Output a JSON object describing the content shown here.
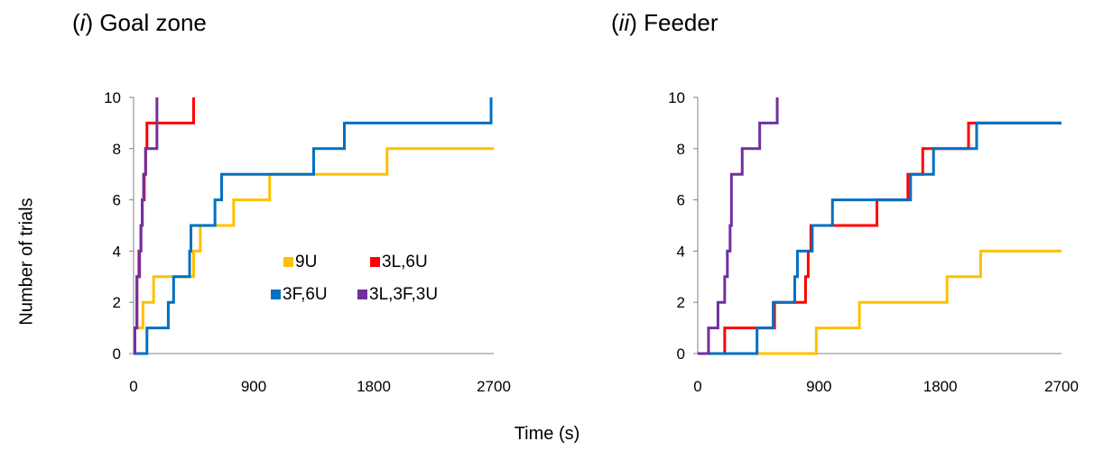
{
  "figure": {
    "ylabel": "Number of trials",
    "xlabel": "Time (s)"
  },
  "colors": {
    "9U": "#FFC000",
    "3L,6U": "#FF0000",
    "3F,6U": "#0070C0",
    "3L,3F,3U": "#7030A0",
    "axis": "#808080"
  },
  "chart_data": [
    {
      "type": "line",
      "step": true,
      "panel_prefix": "(",
      "panel_numeral": "i",
      "panel_suffix": ") Goal zone",
      "xlabel": "Time (s)",
      "ylabel": "Number of trials",
      "xlim": [
        0,
        2700
      ],
      "ylim": [
        0,
        10
      ],
      "xticks": [
        0,
        900,
        1800,
        2700
      ],
      "yticks": [
        0,
        2,
        4,
        6,
        8,
        10
      ],
      "legend": {
        "placement": "center",
        "entries": [
          "9U",
          "3L,6U",
          "3F,6U",
          "3L,3F,3U"
        ]
      },
      "series": [
        {
          "name": "9U",
          "x": [
            10,
            70,
            150,
            450,
            500,
            750,
            1020,
            1350,
            1900,
            2700
          ],
          "y": [
            1,
            2,
            3,
            4,
            5,
            6,
            7,
            7,
            8,
            8
          ]
        },
        {
          "name": "3L,6U",
          "x": [
            10,
            25,
            40,
            55,
            65,
            80,
            90,
            100,
            110,
            120,
            450
          ],
          "y": [
            1,
            3,
            4,
            5,
            6,
            7,
            8,
            9,
            9,
            9,
            10
          ]
        },
        {
          "name": "3F,6U",
          "x": [
            100,
            260,
            300,
            420,
            430,
            610,
            630,
            660,
            1350,
            1580,
            2680
          ],
          "y": [
            1,
            2,
            3,
            4,
            5,
            6,
            6,
            7,
            8,
            9,
            10
          ]
        },
        {
          "name": "3L,3F,3U",
          "x": [
            10,
            25,
            45,
            55,
            65,
            75,
            90,
            110,
            175
          ],
          "y": [
            1,
            3,
            4,
            5,
            6,
            7,
            8,
            8,
            10
          ]
        }
      ]
    },
    {
      "type": "line",
      "step": true,
      "panel_prefix": "(",
      "panel_numeral": "ii",
      "panel_suffix": ") Feeder",
      "xlabel": "Time (s)",
      "ylabel": "Number of trials",
      "xlim": [
        0,
        2700
      ],
      "ylim": [
        0,
        10
      ],
      "xticks": [
        0,
        900,
        1800,
        2700
      ],
      "yticks": [
        0,
        2,
        4,
        6,
        8,
        10
      ],
      "series": [
        {
          "name": "9U",
          "x": [
            880,
            1200,
            1850,
            2100,
            2700
          ],
          "y": [
            1,
            2,
            3,
            4,
            4
          ]
        },
        {
          "name": "3L,6U",
          "x": [
            200,
            450,
            570,
            800,
            820,
            840,
            1330,
            1560,
            1670,
            2010,
            2700
          ],
          "y": [
            1,
            1,
            2,
            3,
            4,
            5,
            6,
            7,
            8,
            9,
            9
          ]
        },
        {
          "name": "3F,6U",
          "x": [
            440,
            560,
            720,
            740,
            850,
            1000,
            1580,
            1750,
            2070,
            2700
          ],
          "y": [
            1,
            2,
            3,
            4,
            5,
            6,
            7,
            8,
            9,
            9
          ]
        },
        {
          "name": "3L,3F,3U",
          "x": [
            80,
            150,
            200,
            220,
            240,
            250,
            330,
            460,
            590
          ],
          "y": [
            1,
            2,
            3,
            4,
            5,
            7,
            8,
            9,
            10
          ]
        }
      ]
    }
  ]
}
